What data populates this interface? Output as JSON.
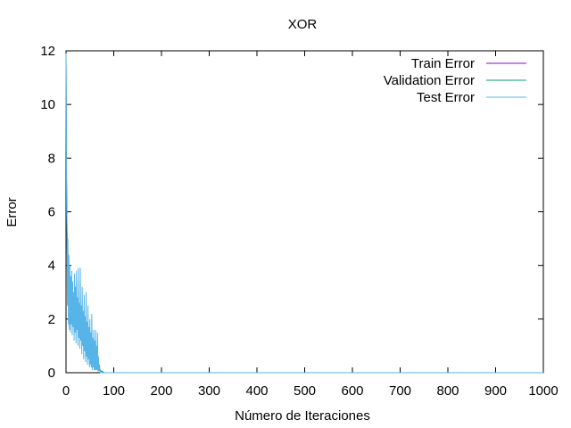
{
  "chart_data": {
    "type": "line",
    "title": "XOR",
    "xlabel": "Número de Iteraciones",
    "ylabel": "Error",
    "xlim": [
      0,
      1000
    ],
    "ylim": [
      0,
      12
    ],
    "xticks": [
      0,
      100,
      200,
      300,
      400,
      500,
      600,
      700,
      800,
      900,
      1000
    ],
    "yticks": [
      0,
      2,
      4,
      6,
      8,
      10,
      12
    ],
    "grid": false,
    "legend_position": "top-right",
    "series": [
      {
        "name": "Train Error",
        "color": "#9400d3",
        "x": [
          0,
          1,
          2,
          3,
          4,
          5,
          6,
          8,
          10,
          15,
          20,
          30,
          40,
          50,
          60,
          70,
          80,
          100,
          200,
          300,
          400,
          500,
          600,
          700,
          800,
          900,
          1000
        ],
        "y": [
          11.8,
          7.5,
          5.5,
          4.2,
          3.4,
          2.9,
          2.6,
          2.3,
          2.1,
          1.9,
          1.8,
          1.6,
          1.4,
          1.0,
          0.5,
          0.1,
          0.0,
          0.0,
          0.0,
          0.0,
          0.0,
          0.0,
          0.0,
          0.0,
          0.0,
          0.0,
          0.0
        ]
      },
      {
        "name": "Validation Error",
        "color": "#009e73",
        "x": [
          0,
          1,
          2,
          3,
          4,
          5,
          6,
          8,
          10,
          15,
          20,
          30,
          40,
          50,
          60,
          70,
          80,
          100,
          200,
          300,
          400,
          500,
          600,
          700,
          800,
          900,
          1000
        ],
        "y": [
          11.6,
          7.2,
          5.3,
          4.0,
          3.3,
          2.8,
          2.5,
          2.2,
          2.0,
          1.8,
          1.7,
          1.5,
          1.3,
          0.9,
          0.4,
          0.1,
          0.0,
          0.0,
          0.0,
          0.0,
          0.0,
          0.0,
          0.0,
          0.0,
          0.0,
          0.0,
          0.0
        ]
      },
      {
        "name": "Test Error",
        "color": "#56b4e9",
        "x": [
          0,
          1,
          2,
          3,
          4,
          5,
          6,
          7,
          8,
          9,
          10,
          11,
          12,
          13,
          14,
          15,
          16,
          17,
          18,
          19,
          20,
          21,
          22,
          23,
          24,
          25,
          26,
          27,
          28,
          29,
          30,
          31,
          32,
          33,
          34,
          35,
          36,
          37,
          38,
          39,
          40,
          41,
          42,
          43,
          44,
          45,
          46,
          47,
          48,
          49,
          50,
          51,
          52,
          53,
          54,
          55,
          56,
          57,
          58,
          59,
          60,
          61,
          62,
          63,
          64,
          65,
          66,
          67,
          68,
          69,
          70,
          72,
          75,
          80,
          90,
          100,
          200,
          300,
          400,
          500,
          600,
          700,
          800,
          900,
          1000
        ],
        "y": [
          11.9,
          7.0,
          5.3,
          2.5,
          5.0,
          1.8,
          4.4,
          1.6,
          4.0,
          1.5,
          3.6,
          1.8,
          3.8,
          1.4,
          3.4,
          1.7,
          3.0,
          1.2,
          3.7,
          1.5,
          3.2,
          1.1,
          3.8,
          1.6,
          2.8,
          1.0,
          3.9,
          1.3,
          2.6,
          0.9,
          3.9,
          1.2,
          2.5,
          0.7,
          3.2,
          1.0,
          2.3,
          0.5,
          2.9,
          0.8,
          2.1,
          0.4,
          3.0,
          0.6,
          1.9,
          0.3,
          2.5,
          0.5,
          1.7,
          0.2,
          2.0,
          0.3,
          1.5,
          0.2,
          2.2,
          0.1,
          1.3,
          0.2,
          1.6,
          0.1,
          1.2,
          0.1,
          1.6,
          0.1,
          1.0,
          0.1,
          1.5,
          0.05,
          0.6,
          0.05,
          0.3,
          0.0,
          0.0,
          0.0,
          0.0,
          0.0,
          0.0,
          0.0,
          0.0,
          0.0,
          0.0,
          0.0,
          0.0,
          0.0,
          0.0
        ]
      }
    ]
  }
}
